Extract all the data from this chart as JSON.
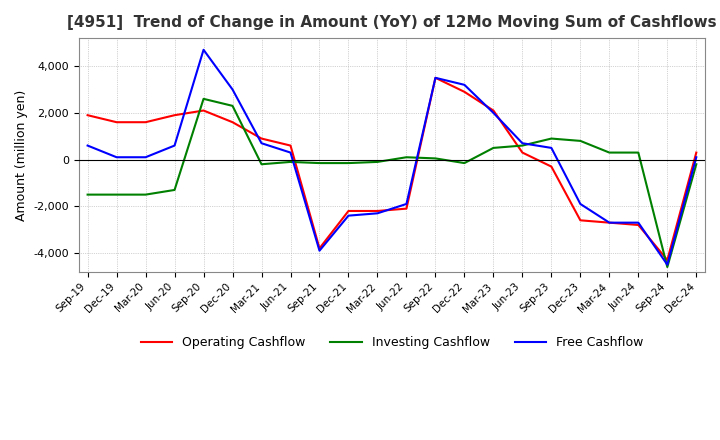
{
  "title": "[4951]  Trend of Change in Amount (YoY) of 12Mo Moving Sum of Cashflows",
  "ylabel": "Amount (million yen)",
  "ylim": [
    -4800,
    5200
  ],
  "yticks": [
    -4000,
    -2000,
    0,
    2000,
    4000
  ],
  "x_labels": [
    "Sep-19",
    "Dec-19",
    "Mar-20",
    "Jun-20",
    "Sep-20",
    "Dec-20",
    "Mar-21",
    "Jun-21",
    "Sep-21",
    "Dec-21",
    "Mar-22",
    "Jun-22",
    "Sep-22",
    "Dec-22",
    "Mar-23",
    "Jun-23",
    "Sep-23",
    "Dec-23",
    "Mar-24",
    "Jun-24",
    "Sep-24",
    "Dec-24"
  ],
  "operating": [
    1900,
    1600,
    1600,
    1900,
    2100,
    1600,
    900,
    600,
    -3800,
    -2200,
    -2200,
    -2100,
    3500,
    2900,
    2100,
    300,
    -300,
    -2600,
    -2700,
    -2800,
    -4300,
    300
  ],
  "investing": [
    -1500,
    -1500,
    -1500,
    -1300,
    2600,
    2300,
    -200,
    -100,
    -150,
    -150,
    -100,
    100,
    50,
    -150,
    500,
    600,
    900,
    800,
    300,
    300,
    -4600,
    -200
  ],
  "free": [
    600,
    100,
    100,
    600,
    4700,
    3000,
    700,
    300,
    -3900,
    -2400,
    -2300,
    -1900,
    3500,
    3200,
    2000,
    700,
    500,
    -1900,
    -2700,
    -2700,
    -4500,
    100
  ],
  "op_color": "#ff0000",
  "inv_color": "#008000",
  "free_color": "#0000ff",
  "bg_color": "#ffffff",
  "grid_color": "#aaaaaa"
}
